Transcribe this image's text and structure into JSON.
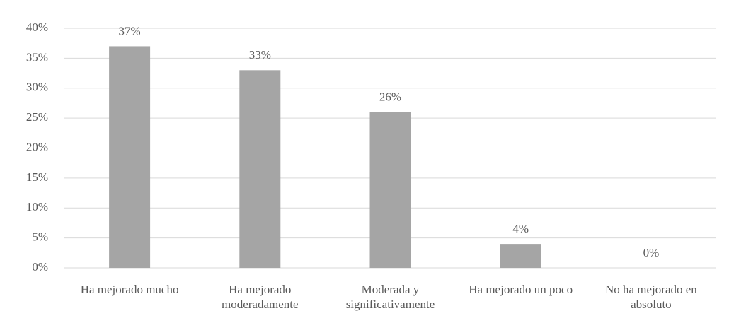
{
  "chart_data": {
    "type": "bar",
    "categories": [
      "Ha mejorado mucho",
      "Ha mejorado moderadamente",
      "Moderada y significativamente",
      "Ha mejorado un poco",
      "No ha mejorado en absoluto"
    ],
    "values": [
      37,
      33,
      26,
      4,
      0
    ],
    "value_labels": [
      "37%",
      "33%",
      "26%",
      "4%",
      "0%"
    ],
    "color": "#a5a5a5",
    "ylim": [
      0,
      40
    ],
    "yticks": [
      {
        "value": 0,
        "label": "0%"
      },
      {
        "value": 5,
        "label": "5%"
      },
      {
        "value": 10,
        "label": "10%"
      },
      {
        "value": 15,
        "label": "15%"
      },
      {
        "value": 20,
        "label": "20%"
      },
      {
        "value": 25,
        "label": "25%"
      },
      {
        "value": 30,
        "label": "30%"
      },
      {
        "value": 35,
        "label": "35%"
      },
      {
        "value": 40,
        "label": "40%"
      }
    ],
    "grid": true
  }
}
